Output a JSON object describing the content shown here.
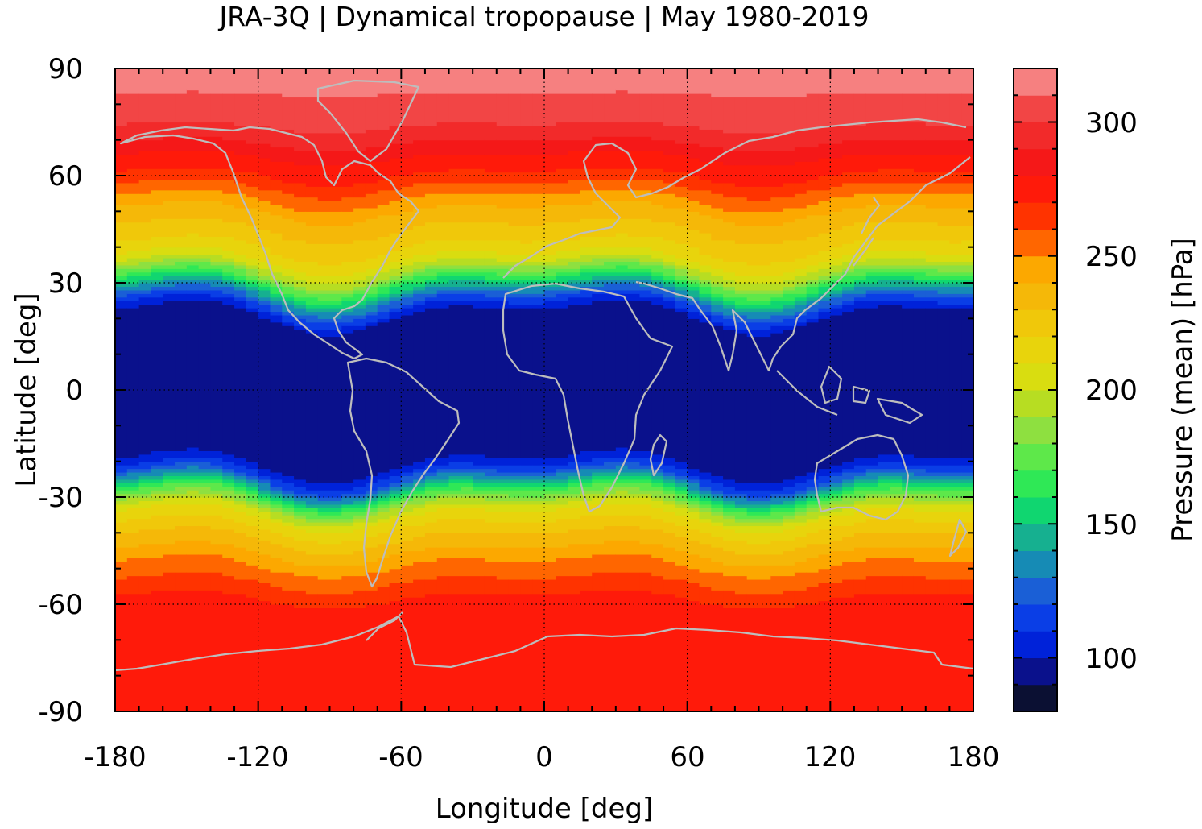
{
  "chart_data": {
    "type": "heatmap",
    "title": "JRA-3Q | Dynamical tropopause | May 1980-2019",
    "xlabel": "Longitude [deg]",
    "ylabel": "Latitude [deg]",
    "xlim": [
      -180,
      180
    ],
    "ylim": [
      -90,
      90
    ],
    "x_ticks": [
      "-180",
      "-120",
      "-60",
      "0",
      "60",
      "120",
      "180"
    ],
    "y_ticks": [
      "90",
      "60",
      "30",
      "0",
      "-30",
      "-60",
      "-90"
    ],
    "grid": "dotted",
    "colorbar": {
      "label": "Pressure (mean) [hPa]",
      "range": [
        80,
        320
      ],
      "ticks": [
        "100",
        "150",
        "200",
        "250",
        "300"
      ],
      "levels": [
        80,
        90,
        100,
        110,
        120,
        130,
        140,
        150,
        160,
        170,
        180,
        190,
        200,
        210,
        220,
        230,
        240,
        250,
        260,
        270,
        280,
        290,
        300,
        310,
        320
      ],
      "colors": [
        "#0b1033",
        "#0a118c",
        "#0022d9",
        "#0a3ee6",
        "#1a5fd6",
        "#168bb5",
        "#16b090",
        "#10d670",
        "#2fe856",
        "#5ee84a",
        "#8ee040",
        "#b7dd22",
        "#d9dd10",
        "#e8d40c",
        "#f0c80a",
        "#f5b808",
        "#fca800",
        "#ff6600",
        "#ff3300",
        "#ff1a0a",
        "#f51818",
        "#f22a2a",
        "#f24545",
        "#f68080",
        "#ffcccc"
      ]
    },
    "zonal_mean_profile": {
      "lat": [
        -90,
        -80,
        -70,
        -60,
        -55,
        -50,
        -45,
        -40,
        -35,
        -30,
        -27,
        -24,
        -21,
        -18,
        -15,
        -10,
        0,
        10,
        15,
        18,
        21,
        24,
        27,
        30,
        33,
        36,
        40,
        45,
        50,
        55,
        60,
        65,
        70,
        75,
        80,
        85,
        90
      ],
      "pressure_hPa": [
        273,
        276,
        278,
        273,
        262,
        252,
        238,
        225,
        208,
        170,
        140,
        115,
        100,
        95,
        92,
        90,
        90,
        90,
        92,
        95,
        100,
        118,
        140,
        165,
        190,
        208,
        220,
        230,
        240,
        255,
        270,
        280,
        293,
        303,
        308,
        312,
        313
      ]
    }
  }
}
